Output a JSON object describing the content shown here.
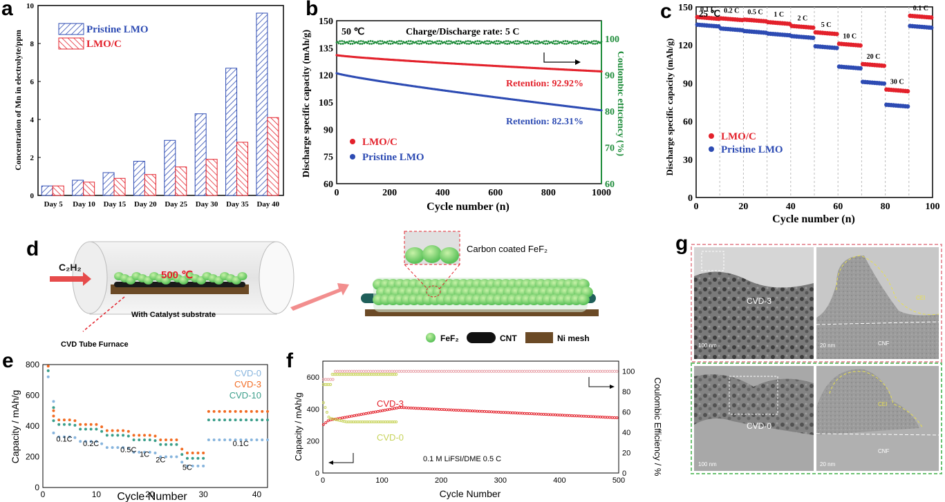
{
  "colors": {
    "blue": "#2d4bb3",
    "red": "#e3212b",
    "green": "#1e8c3a",
    "pink": "#e8a0a8",
    "yellowgreen": "#c7d35a",
    "cvd0": "#86b4dd",
    "cvd3": "#f26b22",
    "cvd10": "#3a9e8a"
  },
  "panels": {
    "a": "a",
    "b": "b",
    "c": "c",
    "d": "d",
    "e": "e",
    "f": "f",
    "g": "g"
  },
  "chart_data": [
    {
      "id": "a",
      "type": "bar",
      "ylabel": "Concentration of Mn in electrolyte/ppm",
      "categories": [
        "Day 5",
        "Day 10",
        "Day 15",
        "Day 20",
        "Day 25",
        "Day 30",
        "Day 35",
        "Day 40"
      ],
      "ylim": [
        0,
        10
      ],
      "yticks": [
        "0",
        "2",
        "4",
        "6",
        "8",
        "10"
      ],
      "series": [
        {
          "name": "Pristine LMO",
          "values": [
            0.5,
            0.8,
            1.2,
            1.8,
            2.9,
            4.3,
            6.7,
            9.6
          ]
        },
        {
          "name": "LMO/C",
          "values": [
            0.5,
            0.7,
            0.9,
            1.1,
            1.5,
            1.9,
            2.8,
            4.1
          ]
        }
      ]
    },
    {
      "id": "b",
      "type": "scatter",
      "xlabel": "Cycle number (n)",
      "ylabel": "Discharge specific capacity (mAh/g)",
      "y2label": "Coulombic efficiency (%)",
      "xlim": [
        0,
        1000
      ],
      "ylim": [
        60,
        150
      ],
      "y2lim": [
        60,
        105
      ],
      "xticks": [
        "0",
        "200",
        "400",
        "600",
        "800",
        "1000"
      ],
      "yticks": [
        "60",
        "75",
        "90",
        "105",
        "120",
        "135",
        "150"
      ],
      "y2ticks": [
        "60",
        "70",
        "80",
        "90",
        "100"
      ],
      "annotations": {
        "temp": "50 ℃",
        "rate": "Charge/Discharge rate: 5 C",
        "ret1": "Retention: 92.92%",
        "ret2": "Retention: 82.31%"
      },
      "series": [
        {
          "name": "LMO/C",
          "start": 131,
          "end": 122
        },
        {
          "name": "Pristine LMO",
          "start": 121,
          "end": 100.5
        },
        {
          "name": "CE",
          "value": 99
        }
      ]
    },
    {
      "id": "c",
      "type": "scatter",
      "xlabel": "Cycle number (n)",
      "ylabel": "Discharge specific capacity (mAh/g)",
      "xlim": [
        0,
        100
      ],
      "ylim": [
        0,
        150
      ],
      "xticks": [
        "0",
        "20",
        "40",
        "60",
        "80",
        "100"
      ],
      "yticks": [
        "0",
        "30",
        "60",
        "90",
        "120",
        "150"
      ],
      "temp": "25 ℃",
      "rates": [
        "0.1 C",
        "0.2 C",
        "0.5 C",
        "1 C",
        "2 C",
        "5 C",
        "10 C",
        "20 C",
        "30 C",
        "0.1 C"
      ],
      "series": [
        {
          "name": "LMO/C",
          "values": [
            142,
            141,
            140,
            138,
            135,
            130,
            121,
            105,
            85,
            143
          ]
        },
        {
          "name": "Pristine LMO",
          "values": [
            136,
            133,
            131,
            129,
            127,
            119,
            103,
            91,
            73,
            135
          ]
        }
      ]
    },
    {
      "id": "e",
      "type": "scatter",
      "xlabel": "Cycle Number",
      "ylabel": "Capacity / mAh/g",
      "xlim": [
        0,
        42
      ],
      "ylim": [
        0,
        800
      ],
      "xticks": [
        "0",
        "10",
        "20",
        "30",
        "40"
      ],
      "yticks": [
        "0",
        "200",
        "400",
        "600",
        "800"
      ],
      "rates": [
        "0.1C",
        "0.2C",
        "0.5C",
        "1C",
        "2C",
        "5C",
        "0.1C"
      ],
      "series": [
        {
          "name": "CVD-0",
          "values": [
            330,
            300,
            260,
            230,
            200,
            140,
            310
          ]
        },
        {
          "name": "CVD-3",
          "values": [
            440,
            410,
            370,
            340,
            310,
            225,
            495
          ]
        },
        {
          "name": "CVD-10",
          "values": [
            410,
            380,
            340,
            310,
            280,
            190,
            440
          ]
        }
      ]
    },
    {
      "id": "f",
      "type": "scatter",
      "xlabel": "Cycle Number",
      "ylabel": "Capacity / mAh/g",
      "y2label": "Coulombic Efficiency / %",
      "xlim": [
        0,
        500
      ],
      "ylim": [
        0,
        700
      ],
      "y2lim": [
        0,
        110
      ],
      "xticks": [
        "0",
        "100",
        "200",
        "300",
        "400",
        "500"
      ],
      "yticks": [
        "0",
        "200",
        "400",
        "600"
      ],
      "y2ticks": [
        "0",
        "20",
        "40",
        "60",
        "80",
        "100"
      ],
      "note": "0.1 M LiFSI/DME 0.5 C",
      "series": [
        {
          "name": "CVD-3",
          "peak": 410,
          "end": 345
        },
        {
          "name": "CVD-0",
          "value": 320
        },
        {
          "name": "CE",
          "value": 100
        }
      ]
    }
  ],
  "diagram_d": {
    "gas": "C₂H₂",
    "temp": "500 ℃",
    "substrate": "With Catalyst substrate",
    "furnace": "CVD Tube Furnace",
    "coated": "Carbon coated FeF₂",
    "legend": [
      "FeF₂",
      "CNT",
      "Ni mesh"
    ]
  },
  "images_g": {
    "top": "CVD-3",
    "bottom": "CVD-0",
    "cei": "CEI",
    "cnf": "CNF",
    "scale1": "100 nm",
    "scale2": "20 nm"
  }
}
